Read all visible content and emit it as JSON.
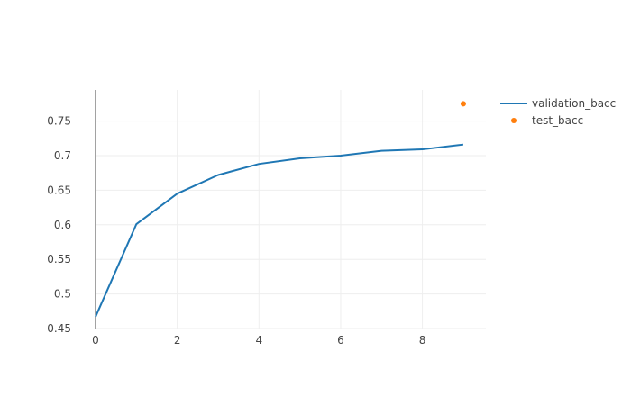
{
  "chart_data": {
    "type": "line",
    "title": "",
    "xlabel": "",
    "ylabel": "",
    "xlim": [
      0,
      9.2
    ],
    "ylim": [
      0.45,
      0.795
    ],
    "x_ticks": [
      0,
      2,
      4,
      6,
      8
    ],
    "x_tick_labels": [
      "0",
      "2",
      "4",
      "6",
      "8"
    ],
    "y_ticks": [
      0.45,
      0.5,
      0.55,
      0.6,
      0.65,
      0.7,
      0.75
    ],
    "y_tick_labels": [
      "0.45",
      "0.5",
      "0.55",
      "0.6",
      "0.65",
      "0.7",
      "0.75"
    ],
    "grid": true,
    "legend_position": "top-right",
    "series": [
      {
        "name": "validation_bacc",
        "mode": "lines",
        "color": "#1f77b4",
        "x": [
          0,
          1,
          2,
          3,
          4,
          5,
          6,
          7,
          8,
          9
        ],
        "y": [
          0.467,
          0.601,
          0.645,
          0.672,
          0.688,
          0.696,
          0.7,
          0.707,
          0.709,
          0.716
        ]
      },
      {
        "name": "test_bacc",
        "mode": "markers",
        "color": "#ff7f0e",
        "x": [
          9
        ],
        "y": [
          0.775
        ]
      }
    ]
  }
}
